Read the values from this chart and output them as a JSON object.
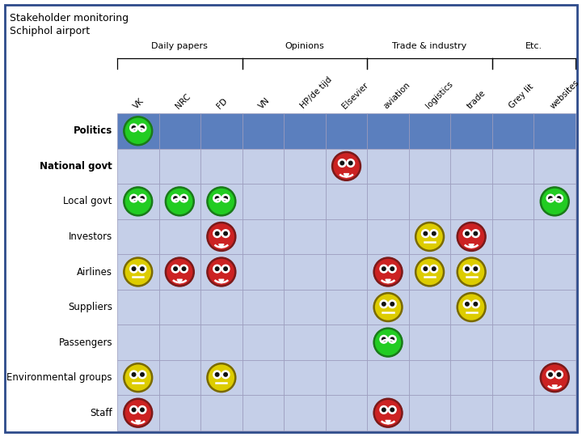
{
  "title_line1": "Stakeholder monitoring",
  "title_line2": "Schiphol airport",
  "bg_color": "#ffffff",
  "border_color": "#2e4b8b",
  "cell_dark": "#5b7fbe",
  "cell_light": "#c5cfe8",
  "groups": [
    {
      "label": "Daily papers",
      "start": 0,
      "end": 2
    },
    {
      "label": "Opinions",
      "start": 3,
      "end": 5
    },
    {
      "label": "Trade & industry",
      "start": 6,
      "end": 8
    },
    {
      "label": "Etc.",
      "start": 9,
      "end": 10
    }
  ],
  "col_labels": [
    "VK",
    "NRC",
    "FD",
    "VN",
    "HP/de tijd",
    "Elsevier",
    "aviation",
    "logistics",
    "trade",
    "Grey lit",
    "websites"
  ],
  "row_labels": [
    "Politics",
    "National govt",
    "Local govt",
    "Investors",
    "Airlines",
    "Suppliers",
    "Passengers",
    "Environmental groups",
    "Staff"
  ],
  "row_shading": [
    "dark",
    "light",
    "light",
    "light",
    "light",
    "light",
    "light",
    "light",
    "light"
  ],
  "faces": [
    {
      "row": 0,
      "col": 0,
      "color": "green"
    },
    {
      "row": 1,
      "col": 5,
      "color": "red"
    },
    {
      "row": 2,
      "col": 0,
      "color": "green"
    },
    {
      "row": 2,
      "col": 1,
      "color": "green"
    },
    {
      "row": 2,
      "col": 2,
      "color": "green"
    },
    {
      "row": 2,
      "col": 10,
      "color": "green"
    },
    {
      "row": 3,
      "col": 2,
      "color": "red"
    },
    {
      "row": 3,
      "col": 7,
      "color": "yellow"
    },
    {
      "row": 3,
      "col": 8,
      "color": "red"
    },
    {
      "row": 4,
      "col": 0,
      "color": "yellow"
    },
    {
      "row": 4,
      "col": 1,
      "color": "red"
    },
    {
      "row": 4,
      "col": 2,
      "color": "red"
    },
    {
      "row": 4,
      "col": 6,
      "color": "red"
    },
    {
      "row": 4,
      "col": 7,
      "color": "yellow"
    },
    {
      "row": 4,
      "col": 8,
      "color": "yellow"
    },
    {
      "row": 5,
      "col": 6,
      "color": "yellow"
    },
    {
      "row": 5,
      "col": 8,
      "color": "yellow"
    },
    {
      "row": 6,
      "col": 6,
      "color": "green"
    },
    {
      "row": 7,
      "col": 0,
      "color": "yellow"
    },
    {
      "row": 7,
      "col": 2,
      "color": "yellow"
    },
    {
      "row": 7,
      "col": 10,
      "color": "red"
    },
    {
      "row": 8,
      "col": 0,
      "color": "red"
    },
    {
      "row": 8,
      "col": 6,
      "color": "red"
    }
  ],
  "face_colors": {
    "green": {
      "face": "#22cc22",
      "outline": "#1a7a1a"
    },
    "red": {
      "face": "#cc2222",
      "outline": "#7a1a1a"
    },
    "yellow": {
      "face": "#ddcc00",
      "outline": "#7a6a00"
    }
  },
  "n_rows": 9,
  "n_cols": 11
}
